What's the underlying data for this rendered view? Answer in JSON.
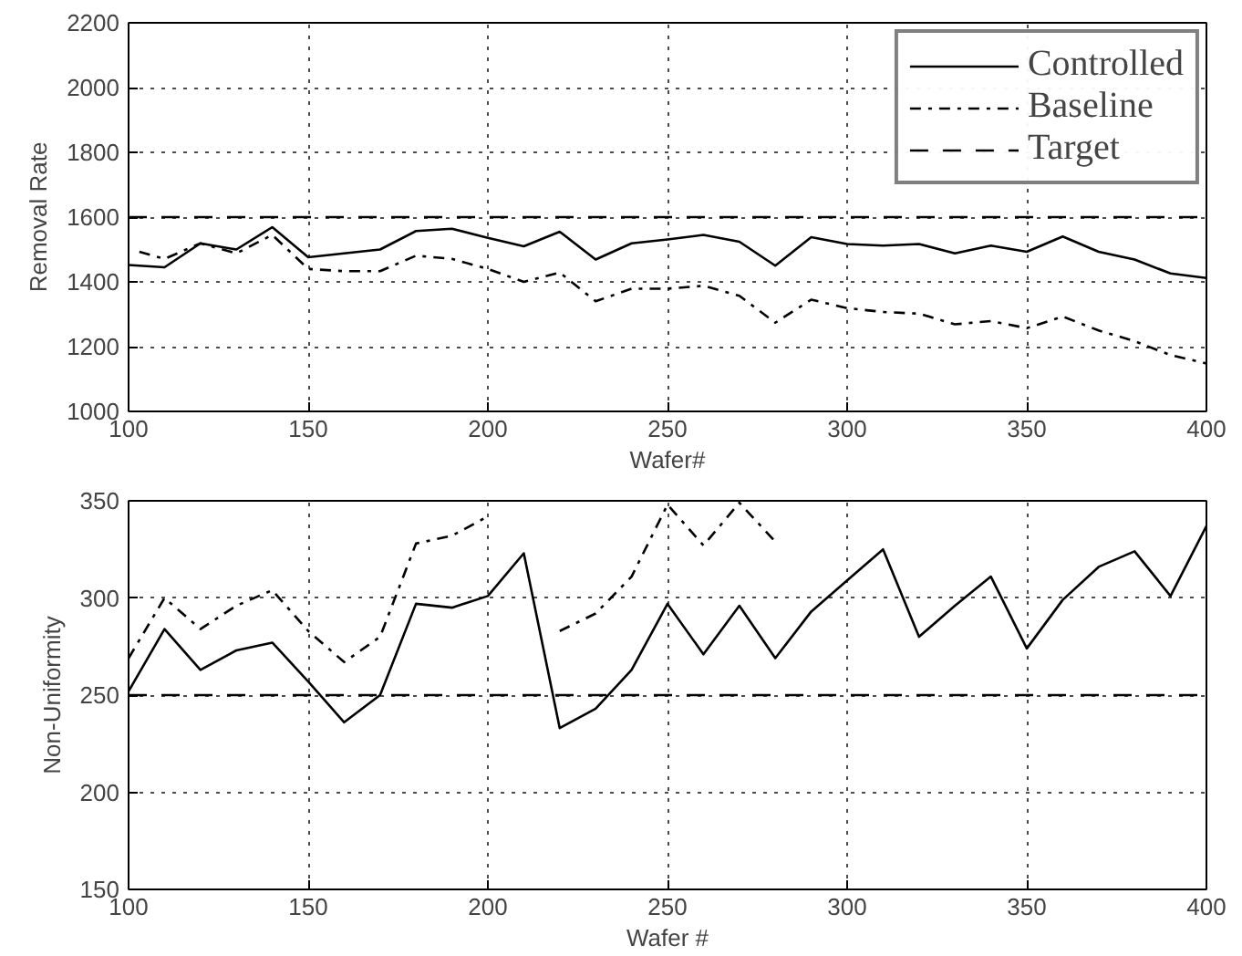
{
  "chart_data": [
    {
      "type": "line",
      "xlabel": "Wafer#",
      "ylabel": "Removal Rate",
      "xlim": [
        100,
        400
      ],
      "ylim": [
        1000,
        2200
      ],
      "xticks": [
        100,
        150,
        200,
        250,
        300,
        350,
        400
      ],
      "yticks": [
        1000,
        1200,
        1400,
        1600,
        1800,
        2000,
        2200
      ],
      "grid": true,
      "legend": "top right",
      "x": [
        100,
        110,
        120,
        130,
        140,
        150,
        160,
        170,
        180,
        190,
        200,
        210,
        220,
        230,
        240,
        250,
        260,
        270,
        280,
        290,
        300,
        310,
        320,
        330,
        340,
        350,
        360,
        370,
        380,
        390,
        400
      ],
      "series": [
        {
          "name": "Controlled",
          "color": "#000000",
          "line_style": "solid",
          "values": [
            1452,
            1445,
            1519,
            1500,
            1569,
            1476,
            1488,
            1500,
            1557,
            1564,
            1536,
            1510,
            1555,
            1469,
            1519,
            1531,
            1545,
            1524,
            1450,
            1538,
            1517,
            1512,
            1517,
            1488,
            1512,
            1493,
            1540,
            1493,
            1469,
            1426,
            1412
          ]
        },
        {
          "name": "Baseline",
          "color": "#000000",
          "line_style": "dashdot",
          "x": [
            103,
            110,
            120,
            130,
            140,
            150,
            160,
            170,
            180,
            190,
            200,
            210,
            220,
            230,
            240,
            250,
            260,
            270,
            280,
            290,
            300,
            310,
            320,
            330,
            340,
            350,
            360,
            370,
            380,
            390,
            400
          ],
          "values": [
            1493,
            1471,
            1519,
            1488,
            1545,
            1440,
            1433,
            1433,
            1481,
            1471,
            1440,
            1400,
            1429,
            1340,
            1379,
            1379,
            1388,
            1357,
            1274,
            1345,
            1319,
            1307,
            1302,
            1269,
            1279,
            1257,
            1293,
            1250,
            1217,
            1174,
            1148
          ]
        },
        {
          "name": "Target",
          "color": "#000000",
          "line_style": "dashed",
          "x": [
            100,
            400
          ],
          "values": [
            1600,
            1600
          ]
        }
      ]
    },
    {
      "type": "line",
      "xlabel": "Wafer #",
      "ylabel": "Non-Uniformity",
      "xlim": [
        100,
        400
      ],
      "ylim": [
        150,
        350
      ],
      "xticks": [
        100,
        150,
        200,
        250,
        300,
        350,
        400
      ],
      "yticks": [
        150,
        200,
        250,
        300,
        350
      ],
      "grid": true,
      "x": [
        100,
        110,
        120,
        130,
        140,
        150,
        160,
        170,
        180,
        190,
        200,
        210,
        220,
        230,
        240,
        250,
        260,
        270,
        280,
        290,
        300,
        310,
        320,
        330,
        340,
        350,
        360,
        370,
        380,
        390,
        400
      ],
      "series": [
        {
          "color": "#000000",
          "line_style": "solid",
          "values": [
            252,
            284,
            263,
            273,
            277,
            257,
            236,
            250,
            297,
            295,
            301,
            323,
            233,
            243,
            263,
            297,
            271,
            296,
            269,
            293,
            309,
            325,
            280,
            296,
            311,
            274,
            299,
            316,
            324,
            301,
            337
          ]
        },
        {
          "color": "#000000",
          "line_style": "dashdot",
          "values": [
            269,
            300,
            284,
            296,
            304,
            283,
            267,
            280,
            328,
            332,
            342,
            null,
            283,
            292,
            311,
            348,
            327,
            349,
            329,
            null,
            null,
            null,
            null,
            null,
            null,
            null,
            null,
            null,
            null,
            null,
            null
          ]
        },
        {
          "color": "#000000",
          "line_style": "dashed",
          "x": [
            100,
            400
          ],
          "values": [
            250,
            250
          ]
        }
      ]
    }
  ]
}
